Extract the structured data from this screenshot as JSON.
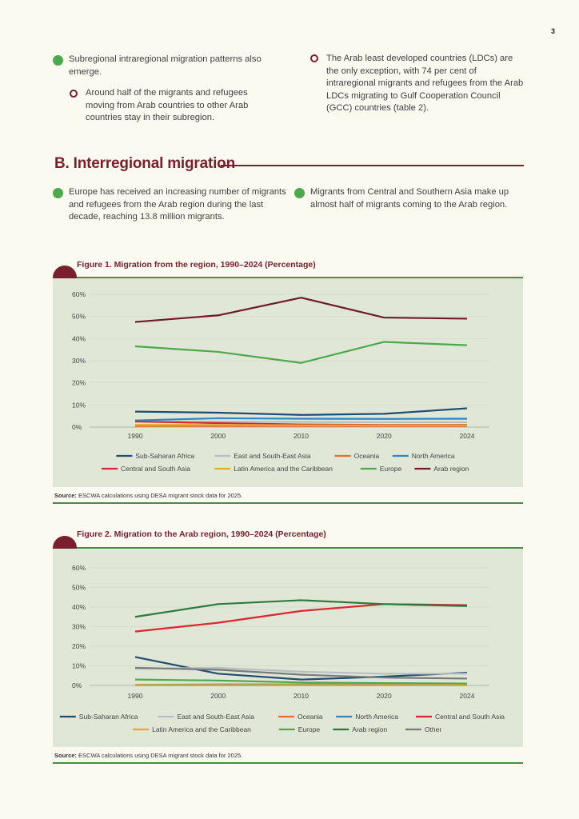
{
  "page": {
    "number": "3"
  },
  "top_bullets": {
    "left_main": "Subregional intraregional migration patterns also emerge.",
    "left_sub": "Around half of the migrants and refugees moving from Arab countries to other Arab countries stay in their subregion.",
    "right_sub": "The Arab least developed countries (LDCs) are the only exception, with 74 per cent of intraregional migrants and refugees from the Arab LDCs migrating to Gulf Cooperation Council (GCC) countries (table 2)."
  },
  "section_b": {
    "title": "B.  Interregional migration",
    "left_bullet": "Europe has received an increasing number of migrants and refugees from the Arab region during the last decade, reaching 13.8 million migrants.",
    "right_bullet": "Migrants from Central and Southern Asia make up almost half of migrants coming to the Arab region."
  },
  "colors": {
    "ssa": "#1f4e6e",
    "esea": "#b8bfc4",
    "oceania": "#e86c2c",
    "na": "#2f86c2",
    "csa": "#d9282e",
    "lac": "#e3a92f",
    "europe": "#4caa4c",
    "arab_fig1": "#6e1a2a",
    "arab_fig2": "#2e7a3e",
    "other": "#7a7a7a",
    "accent": "#7a1f2e"
  },
  "chart_data": [
    {
      "type": "line",
      "title": "Figure 1.  Migration from the region, 1990–2024 (Percentage)",
      "x": [
        "1990",
        "2000",
        "2010",
        "2020",
        "2024"
      ],
      "ylim": [
        0,
        60
      ],
      "yticks": [
        "0%",
        "10%",
        "20%",
        "30%",
        "40%",
        "50%",
        "60%"
      ],
      "legend_rows": [
        [
          "Sub-Saharan Africa",
          "East and South-East Asia",
          "Oceania",
          "North America"
        ],
        [
          "Central and South Asia",
          "Latin America and the Caribbean",
          "Europe",
          "Arab region"
        ]
      ],
      "series": [
        {
          "name": "Sub-Saharan Africa",
          "color": "#1f4e6e",
          "values": [
            7,
            6.5,
            5.5,
            6,
            8.5
          ]
        },
        {
          "name": "East and South-East Asia",
          "color": "#b8bfc4",
          "values": [
            2.5,
            2.5,
            2.3,
            2.2,
            2.2
          ]
        },
        {
          "name": "Oceania",
          "color": "#e86c2c",
          "values": [
            0.5,
            0.5,
            0.5,
            0.5,
            0.5
          ]
        },
        {
          "name": "North America",
          "color": "#2f86c2",
          "values": [
            3,
            4,
            3.8,
            3.7,
            3.8
          ]
        },
        {
          "name": "Central and South Asia",
          "color": "#d9282e",
          "values": [
            2.5,
            1.8,
            1.2,
            1,
            1
          ]
        },
        {
          "name": "Latin America and the Caribbean",
          "color": "#e3a92f",
          "values": [
            1,
            1,
            0.8,
            0.8,
            0.8
          ]
        },
        {
          "name": "Europe",
          "color": "#4caa4c",
          "values": [
            36.5,
            34,
            29,
            38.5,
            37
          ]
        },
        {
          "name": "Arab region",
          "color": "#6e1a2a",
          "values": [
            47.5,
            50.5,
            58.5,
            49.5,
            49
          ]
        }
      ],
      "source_label": "Source:",
      "source_text": "ESCWA calculations using DESA migrant stock data for 2025."
    },
    {
      "type": "line",
      "title": "Figure 2. Migration to the Arab region, 1990–2024 (Percentage)",
      "x": [
        "1990",
        "2000",
        "2010",
        "2020",
        "2024"
      ],
      "ylim": [
        0,
        60
      ],
      "yticks": [
        "0%",
        "10%",
        "20%",
        "30%",
        "40%",
        "50%",
        "60%"
      ],
      "legend_rows": [
        [
          "Sub-Saharan Africa",
          "East and South-East Asia",
          "Oceania",
          "North America",
          "Central and South Asia"
        ],
        [
          "Latin America and the Caribbean",
          "Europe",
          "Arab region",
          "Other"
        ]
      ],
      "series": [
        {
          "name": "Sub-Saharan Africa",
          "color": "#1f4e6e",
          "values": [
            14.5,
            6,
            3,
            4.5,
            6.5
          ]
        },
        {
          "name": "East and South-East Asia",
          "color": "#b8bfc4",
          "values": [
            8.5,
            9,
            7,
            6,
            6
          ]
        },
        {
          "name": "Oceania",
          "color": "#e86c2c",
          "values": [
            0.1,
            0.1,
            0.1,
            0.1,
            0.1
          ]
        },
        {
          "name": "North America",
          "color": "#2f86c2",
          "values": [
            0.3,
            0.5,
            0.5,
            0.4,
            0.4
          ]
        },
        {
          "name": "Central and South Asia",
          "color": "#d9282e",
          "values": [
            27.5,
            32,
            38,
            41.5,
            41
          ]
        },
        {
          "name": "Latin America and the Caribbean",
          "color": "#e3a92f",
          "values": [
            0.2,
            0.2,
            0.2,
            0.2,
            0.2
          ]
        },
        {
          "name": "Europe",
          "color": "#4caa4c",
          "values": [
            3,
            2.5,
            1.5,
            1.2,
            1
          ]
        },
        {
          "name": "Arab region",
          "color": "#2e7a3e",
          "values": [
            35,
            41.5,
            43.5,
            41.5,
            40.5
          ]
        },
        {
          "name": "Other",
          "color": "#7a7a7a",
          "values": [
            9,
            8,
            5.5,
            4,
            3.5
          ]
        }
      ],
      "source_label": "Source:",
      "source_text": "ESCWA calculations using DESA migrant stock data for 2025."
    }
  ]
}
